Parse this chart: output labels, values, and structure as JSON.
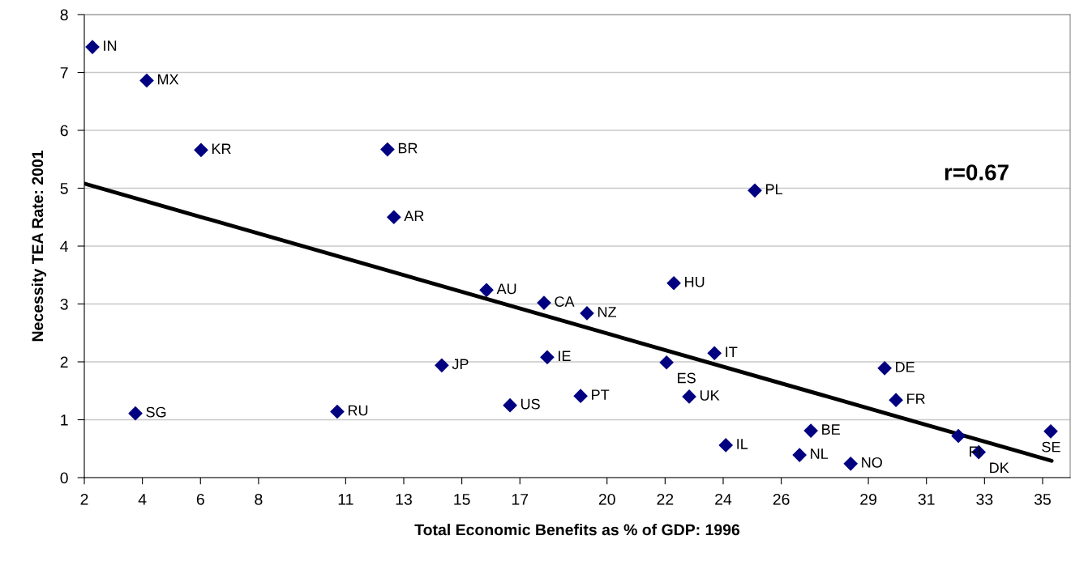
{
  "chart_data": {
    "type": "scatter",
    "xlabel": "Total Economic Benefits as % of GDP: 1996",
    "ylabel": "Necessity TEA Rate: 2001",
    "x": [
      2.28,
      4.15,
      6.02,
      12.44,
      12.66,
      25.09,
      15.85,
      17.83,
      19.31,
      22.3,
      23.7,
      17.94,
      14.31,
      22.05,
      29.56,
      29.95,
      22.83,
      19.09,
      16.66,
      10.71,
      3.76,
      27.02,
      24.09,
      26.63,
      28.39,
      32.1,
      32.8,
      35.28
    ],
    "series": [
      {
        "color": "#000080",
        "marker": "diamond",
        "values": [
          7.44,
          6.86,
          5.66,
          5.67,
          4.5,
          4.96,
          3.24,
          3.02,
          2.84,
          3.36,
          2.15,
          2.08,
          1.94,
          1.99,
          1.89,
          1.34,
          1.4,
          1.41,
          1.25,
          1.14,
          1.11,
          0.81,
          0.56,
          0.39,
          0.24,
          0.72,
          0.44,
          0.8
        ]
      },
      {
        "type": "line",
        "color": "#000000",
        "line_style": "solid",
        "marker": "none",
        "x": [
          2.0,
          35.31
        ],
        "values": [
          5.08,
          0.29
        ]
      }
    ],
    "annotations": [
      {
        "text": "IN",
        "x": 2.28,
        "y": 7.44
      },
      {
        "text": "MX",
        "x": 4.15,
        "y": 6.86
      },
      {
        "text": "KR",
        "x": 6.02,
        "y": 5.66
      },
      {
        "text": "BR",
        "x": 12.44,
        "y": 5.67
      },
      {
        "text": "AR",
        "x": 12.66,
        "y": 4.5
      },
      {
        "text": "PL",
        "x": 25.09,
        "y": 4.96
      },
      {
        "text": "AU",
        "x": 15.85,
        "y": 3.24
      },
      {
        "text": "CA",
        "x": 17.83,
        "y": 3.02
      },
      {
        "text": "NZ",
        "x": 19.31,
        "y": 2.84
      },
      {
        "text": "HU",
        "x": 22.3,
        "y": 3.36
      },
      {
        "text": "IT",
        "x": 23.7,
        "y": 2.15
      },
      {
        "text": "IE",
        "x": 17.94,
        "y": 2.08
      },
      {
        "text": "JP",
        "x": 14.31,
        "y": 1.94
      },
      {
        "text": "ES",
        "x": 22.05,
        "y": 1.99
      },
      {
        "text": "DE",
        "x": 29.56,
        "y": 1.89
      },
      {
        "text": "FR",
        "x": 29.95,
        "y": 1.34
      },
      {
        "text": "UK",
        "x": 22.83,
        "y": 1.4
      },
      {
        "text": "PT",
        "x": 19.09,
        "y": 1.41
      },
      {
        "text": "US",
        "x": 16.66,
        "y": 1.25
      },
      {
        "text": "RU",
        "x": 10.71,
        "y": 1.14
      },
      {
        "text": "SG",
        "x": 3.76,
        "y": 1.11
      },
      {
        "text": "BE",
        "x": 27.02,
        "y": 0.81
      },
      {
        "text": "IL",
        "x": 24.09,
        "y": 0.56
      },
      {
        "text": "NL",
        "x": 26.63,
        "y": 0.39
      },
      {
        "text": "NO",
        "x": 28.39,
        "y": 0.24
      },
      {
        "text": "FI",
        "x": 32.1,
        "y": 0.72
      },
      {
        "text": "DK",
        "x": 32.8,
        "y": 0.44
      },
      {
        "text": "SE",
        "x": 35.28,
        "y": 0.8
      },
      "r=0.67"
    ],
    "xlim": [
      2,
      35.95
    ],
    "xticks": [
      2,
      4,
      6,
      8,
      11,
      13,
      15,
      17,
      20,
      22,
      24,
      26,
      29,
      31,
      33,
      35
    ],
    "ylim": [
      0,
      8
    ],
    "yticks": [
      0,
      1,
      2,
      3,
      4,
      5,
      6,
      7,
      8
    ],
    "grid": "y",
    "legend": false
  }
}
